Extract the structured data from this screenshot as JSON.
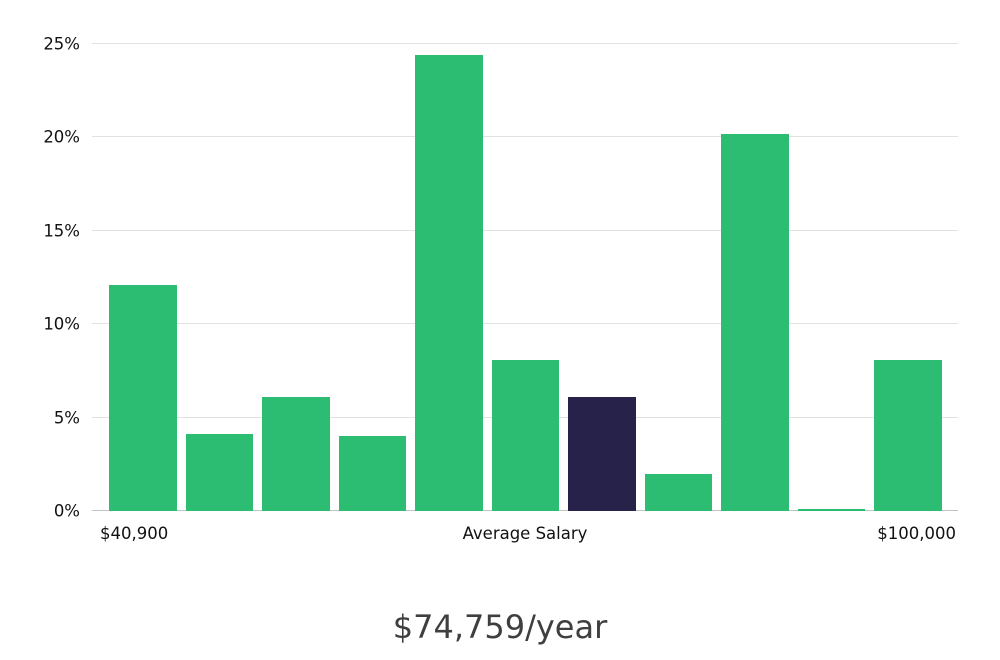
{
  "chart_data": {
    "type": "bar",
    "title": "",
    "xlabel": "",
    "ylabel": "",
    "ylim": [
      0,
      26.6
    ],
    "grid": true,
    "legend": false,
    "y_ticks": [
      0,
      5,
      10,
      15,
      20,
      25
    ],
    "y_tick_labels": [
      "0%",
      "5%",
      "10%",
      "15%",
      "20%",
      "25%"
    ],
    "x_axis_labels": {
      "left": "$40,900",
      "center": "Average Salary",
      "right": "$100,000"
    },
    "values": [
      12.1,
      4.1,
      6.1,
      4.0,
      24.4,
      8.1,
      6.1,
      2.0,
      20.2,
      0.1,
      8.1
    ],
    "highlight_index": 6,
    "colors": {
      "bar": "#2cbd72",
      "highlight": "#272249",
      "grid": "#e2e2e2",
      "zero_line": "#c3c3c3",
      "axis_text": "#111111",
      "caption_text": "#3f3f3f"
    }
  },
  "caption": {
    "salary_text": "$74,759/year"
  }
}
